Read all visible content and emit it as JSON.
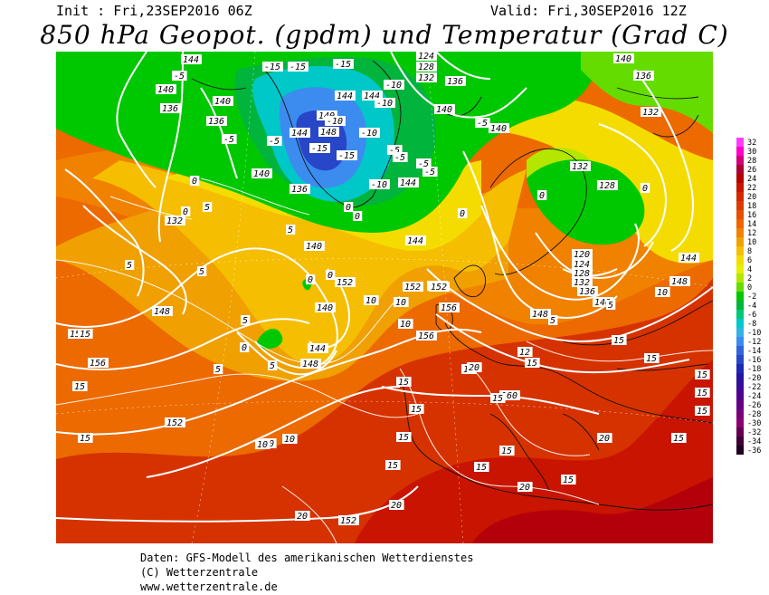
{
  "header": {
    "init": "Init : Fri,23SEP2016 06Z",
    "valid": "Valid: Fri,30SEP2016 12Z",
    "title": "850 hPa Geopot. (gpdm) und Temperatur (Grad C)"
  },
  "legend": {
    "values": [
      "32",
      "30",
      "28",
      "26",
      "24",
      "22",
      "20",
      "18",
      "16",
      "14",
      "12",
      "10",
      "8",
      "6",
      "4",
      "2",
      "0",
      "-2",
      "-4",
      "-6",
      "-8",
      "-10",
      "-12",
      "-14",
      "-16",
      "-18",
      "-20",
      "-22",
      "-24",
      "-26",
      "-28",
      "-30",
      "-32",
      "-34",
      "-36"
    ],
    "colors": [
      "#ff3cff",
      "#ff00c8",
      "#d20078",
      "#aa0032",
      "#b40000",
      "#c81400",
      "#d22800",
      "#dc3c00",
      "#e65000",
      "#f06400",
      "#f08200",
      "#f0a000",
      "#f5be00",
      "#f5dc00",
      "#e6f000",
      "#b4e600",
      "#64dc00",
      "#00c800",
      "#00b43c",
      "#00c878",
      "#00c8c8",
      "#32b4e6",
      "#3c8cf0",
      "#3264dc",
      "#2846c8",
      "#1e28b4",
      "#2814a0",
      "#3c0a96",
      "#50008c",
      "#640082",
      "#780078",
      "#8c006e",
      "#640050",
      "#3c0032",
      "#1e001e"
    ]
  },
  "map": {
    "geopotential_labels": [
      {
        "text": "144"
      },
      {
        "text": "124"
      },
      {
        "text": "128"
      },
      {
        "text": "132"
      },
      {
        "text": "136"
      },
      {
        "text": "144"
      },
      {
        "text": "140"
      },
      {
        "text": "136"
      },
      {
        "text": "140"
      },
      {
        "text": "136"
      },
      {
        "text": "132"
      },
      {
        "text": "140"
      },
      {
        "text": "144"
      },
      {
        "text": "148"
      },
      {
        "text": "140"
      },
      {
        "text": "144"
      },
      {
        "text": "140"
      },
      {
        "text": "136"
      },
      {
        "text": "144"
      },
      {
        "text": "140"
      },
      {
        "text": "132"
      },
      {
        "text": "128"
      },
      {
        "text": "132"
      },
      {
        "text": "136"
      },
      {
        "text": "140"
      },
      {
        "text": "144"
      },
      {
        "text": "148"
      },
      {
        "text": "152"
      },
      {
        "text": "140"
      },
      {
        "text": "140"
      },
      {
        "text": "144"
      },
      {
        "text": "148"
      },
      {
        "text": "152"
      },
      {
        "text": "156"
      },
      {
        "text": "148"
      },
      {
        "text": "120"
      },
      {
        "text": "124"
      },
      {
        "text": "128"
      },
      {
        "text": "132"
      },
      {
        "text": "136"
      },
      {
        "text": "140"
      },
      {
        "text": "148"
      },
      {
        "text": "144"
      },
      {
        "text": "148"
      },
      {
        "text": "152"
      },
      {
        "text": "156"
      },
      {
        "text": "160"
      },
      {
        "text": "156"
      },
      {
        "text": "152"
      },
      {
        "text": "152"
      }
    ],
    "temperature_labels": [
      {
        "text": "-15"
      },
      {
        "text": "-15"
      },
      {
        "text": "-15"
      },
      {
        "text": "-10"
      },
      {
        "text": "-10"
      },
      {
        "text": "-5"
      },
      {
        "text": "-5"
      },
      {
        "text": "-5"
      },
      {
        "text": "-10"
      },
      {
        "text": "-15"
      },
      {
        "text": "-10"
      },
      {
        "text": "-5"
      },
      {
        "text": "-15"
      },
      {
        "text": "-10"
      },
      {
        "text": "-5"
      },
      {
        "text": "-5"
      },
      {
        "text": "-5"
      },
      {
        "text": "-5"
      },
      {
        "text": "0"
      },
      {
        "text": "0"
      },
      {
        "text": "0"
      },
      {
        "text": "0"
      },
      {
        "text": "0"
      },
      {
        "text": "0"
      },
      {
        "text": "0"
      },
      {
        "text": "5"
      },
      {
        "text": "5"
      },
      {
        "text": "5"
      },
      {
        "text": "5"
      },
      {
        "text": "5"
      },
      {
        "text": "5"
      },
      {
        "text": "5"
      },
      {
        "text": "0"
      },
      {
        "text": "0"
      },
      {
        "text": "0"
      },
      {
        "text": "10"
      },
      {
        "text": "10"
      },
      {
        "text": "10"
      },
      {
        "text": "10"
      },
      {
        "text": "10"
      },
      {
        "text": "15"
      },
      {
        "text": "15"
      },
      {
        "text": "15"
      },
      {
        "text": "15"
      },
      {
        "text": "15"
      },
      {
        "text": "15"
      },
      {
        "text": "15"
      },
      {
        "text": "15"
      },
      {
        "text": "15"
      },
      {
        "text": "15"
      },
      {
        "text": "15"
      },
      {
        "text": "15"
      },
      {
        "text": "15"
      },
      {
        "text": "15"
      },
      {
        "text": "15"
      },
      {
        "text": "15"
      },
      {
        "text": "15"
      },
      {
        "text": "15"
      },
      {
        "text": "15"
      },
      {
        "text": "15"
      },
      {
        "text": "20"
      },
      {
        "text": "20"
      },
      {
        "text": "20"
      },
      {
        "text": "20"
      },
      {
        "text": "20"
      },
      {
        "text": "5"
      },
      {
        "text": "10"
      },
      {
        "text": "10"
      },
      {
        "text": "12"
      },
      {
        "text": "5"
      }
    ]
  },
  "footer": {
    "line1": "Daten: GFS-Modell des amerikanischen Wetterdienstes",
    "line2": "(C) Wetterzentrale",
    "line3": "www.wetterzentrale.de"
  }
}
